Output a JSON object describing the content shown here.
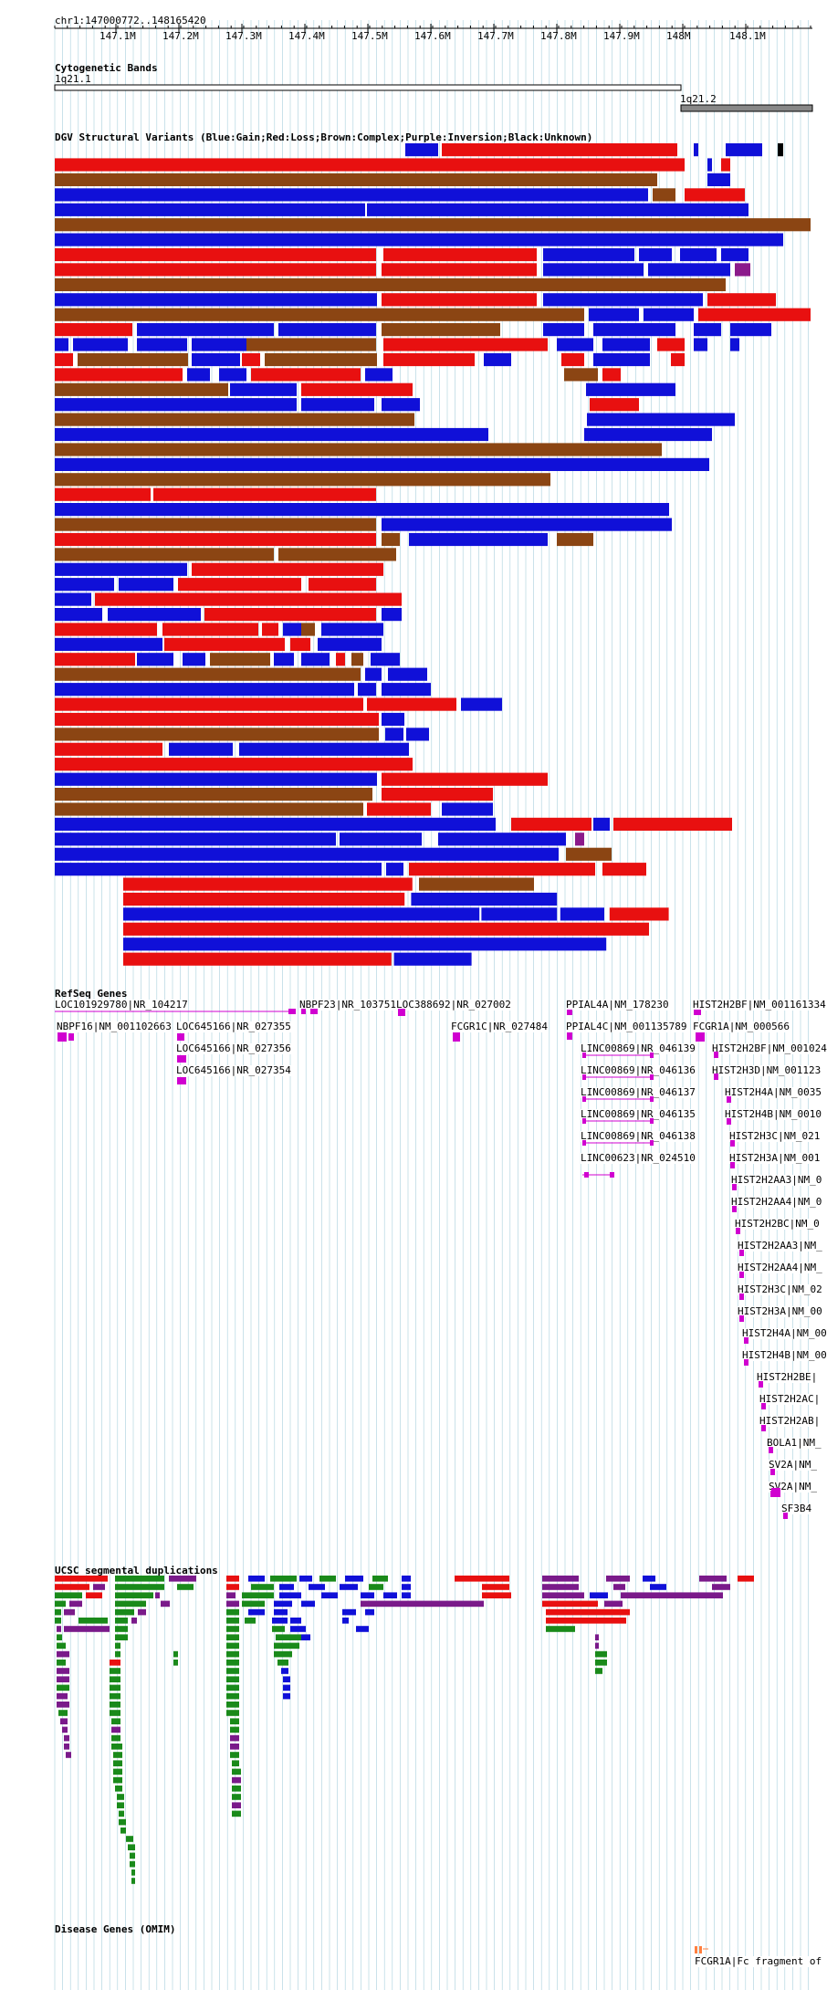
{
  "location": "chr1:147000772..148165420",
  "ruler_ticks": [
    "147.1M",
    "147.2M",
    "147.3M",
    "147.4M",
    "147.5M",
    "147.6M",
    "147.7M",
    "147.8M",
    "147.9M",
    "148M",
    "148.1M"
  ],
  "tracks": {
    "cytoband_title": "Cytogenetic Bands",
    "band1": "1q21.1",
    "band2": "1q21.2",
    "dgv_title": "DGV Structural Variants (Blue:Gain;Red:Loss;Brown:Complex;Purple:Inversion;Black:Unknown)",
    "refseq_title": "RefSeq Genes",
    "segdup_title": "UCSC segmental duplications",
    "disease_title": "Disease Genes (OMIM)"
  },
  "colors": {
    "gain": "#1010d8",
    "loss": "#e81010",
    "complex": "#8b4513",
    "inversion": "#8b1a8b",
    "unknown": "#000000",
    "gene": "#d000d0",
    "grid": "#a8d0dc",
    "segdup_green": "#1a8a1a",
    "segdup_purple": "#7a1a8a",
    "segdup_red": "#e81010",
    "segdup_blue": "#1010d8",
    "omim": "#ff7f3f"
  },
  "genes": [
    "LOC101929780|NR_104217",
    "NBPF23|NR_103751",
    "LOC388692|NR_027002",
    "PPIAL4A|NM_178230",
    "HIST2H2BF|NM_001161334",
    "NBPF16|NM_001102663",
    "LOC645166|NR_027355",
    "FCGR1C|NR_027484",
    "PPIAL4C|NM_001135789",
    "FCGR1A|NM_000566",
    "LOC645166|NR_027356",
    "LOC645166|NR_027354",
    "LINC00869|NR_046139",
    "LINC00869|NR_046136",
    "LINC00869|NR_046137",
    "LINC00869|NR_046135",
    "LINC00869|NR_046138",
    "LINC00623|NR_024510",
    "HIST2H2BF|NM_001024",
    "HIST2H3D|NM_001123",
    "HIST2H4A|NM_0035",
    "HIST2H4B|NM_0010",
    "HIST2H3C|NM_021",
    "HIST2H3A|NM_001",
    "HIST2H2AA3|NM_0",
    "HIST2H2AA4|NM_0",
    "HIST2H2BC|NM_0",
    "HIST2H2AA3|NM_",
    "HIST2H2AA4|NM_",
    "HIST2H3C|NM_02",
    "HIST2H3A|NM_00",
    "HIST2H4A|NM_00",
    "HIST2H4B|NM_00",
    "HIST2H2BE|",
    "HIST2H2AC|",
    "HIST2H2AB|",
    "BOLA1|NM_",
    "SV2A|NM_",
    "SV2A|NM_",
    "SF3B4"
  ],
  "omim": [
    "FCGR1A|Fc fragment of"
  ]
}
